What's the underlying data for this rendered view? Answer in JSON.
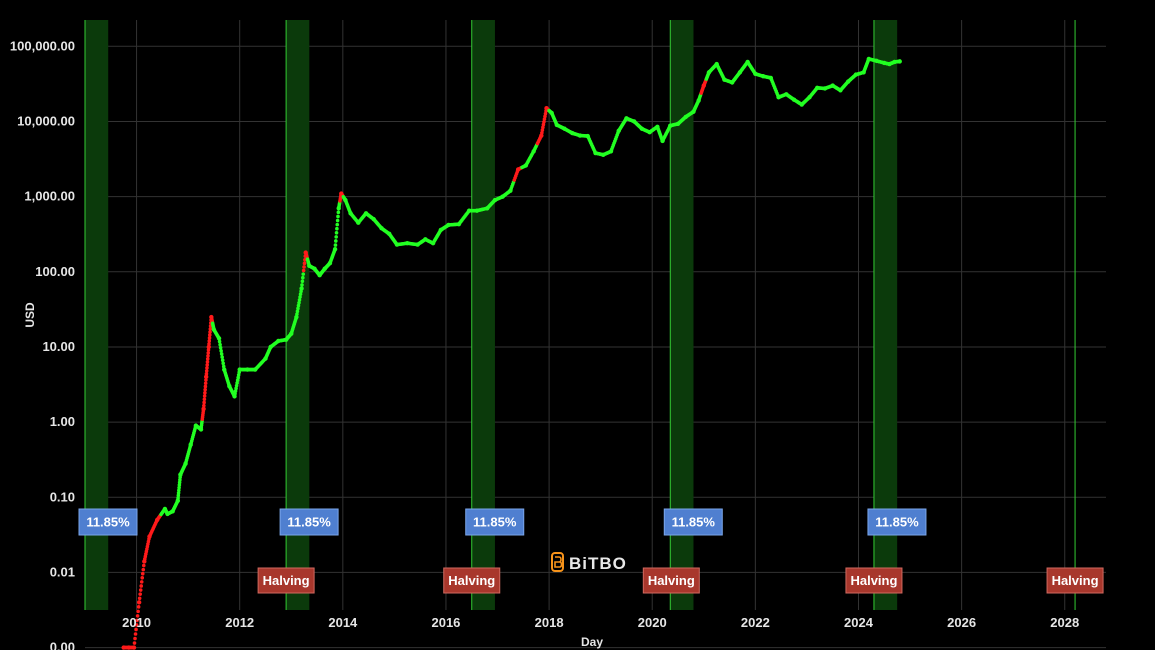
{
  "chart_data": {
    "type": "scatter",
    "title": "",
    "xlabel": "Day",
    "ylabel": "USD",
    "y_scale": "log",
    "x_range": [
      2009.0,
      2028.8
    ],
    "y_range_log10": [
      -2.5,
      5.35
    ],
    "x_tick_labels": [
      "2010",
      "2012",
      "2014",
      "2016",
      "2018",
      "2020",
      "2022",
      "2024",
      "2026",
      "2028"
    ],
    "x_tick_values": [
      2010,
      2012,
      2014,
      2016,
      2018,
      2020,
      2022,
      2024,
      2026,
      2028
    ],
    "y_tick_labels": [
      "100,000.00",
      "10,000.00",
      "1,000.00",
      "100.00",
      "10.00",
      "1.00",
      "0.10",
      "0.01",
      "0.00"
    ],
    "y_tick_log10": [
      5,
      4,
      3,
      2,
      1,
      0,
      -1,
      -2,
      -3
    ],
    "grid": true,
    "colors": {
      "up": "#22ff22",
      "down": "#ff1a1a",
      "band": "#0b3a0b",
      "band_line": "#33cc33",
      "pct_box": "#4f7fd0",
      "halving_box": "#a8372c"
    },
    "bands": [
      {
        "start": 2009.0,
        "end": 2009.45,
        "label": "11.85%"
      },
      {
        "start": 2012.9,
        "end": 2013.35,
        "label": "11.85%"
      },
      {
        "start": 2016.5,
        "end": 2016.95,
        "label": "11.85%"
      },
      {
        "start": 2020.35,
        "end": 2020.8,
        "label": "11.85%"
      },
      {
        "start": 2024.3,
        "end": 2024.75,
        "label": "11.85%"
      }
    ],
    "halvings": [
      {
        "x": 2012.9,
        "label": "Halving"
      },
      {
        "x": 2016.5,
        "label": "Halving"
      },
      {
        "x": 2020.37,
        "label": "Halving"
      },
      {
        "x": 2024.3,
        "label": "Halving"
      },
      {
        "x": 2028.2,
        "label": "Halving"
      }
    ],
    "price_series": [
      [
        2009.75,
        0.001,
        "down"
      ],
      [
        2009.85,
        0.001,
        "down"
      ],
      [
        2009.95,
        0.001,
        "down"
      ],
      [
        2010.05,
        0.004,
        "down"
      ],
      [
        2010.15,
        0.014,
        "down"
      ],
      [
        2010.25,
        0.03,
        "down"
      ],
      [
        2010.4,
        0.05,
        "down"
      ],
      [
        2010.55,
        0.07,
        "up"
      ],
      [
        2010.6,
        0.06,
        "up"
      ],
      [
        2010.7,
        0.065,
        "up"
      ],
      [
        2010.8,
        0.09,
        "up"
      ],
      [
        2010.85,
        0.2,
        "up"
      ],
      [
        2010.95,
        0.28,
        "up"
      ],
      [
        2011.05,
        0.5,
        "up"
      ],
      [
        2011.15,
        0.9,
        "up"
      ],
      [
        2011.25,
        0.8,
        "up"
      ],
      [
        2011.3,
        1.5,
        "down"
      ],
      [
        2011.35,
        4.0,
        "down"
      ],
      [
        2011.4,
        10,
        "down"
      ],
      [
        2011.45,
        25,
        "down"
      ],
      [
        2011.5,
        17,
        "up"
      ],
      [
        2011.6,
        13,
        "up"
      ],
      [
        2011.7,
        5,
        "up"
      ],
      [
        2011.8,
        3,
        "up"
      ],
      [
        2011.9,
        2.2,
        "up"
      ],
      [
        2012.0,
        5,
        "up"
      ],
      [
        2012.15,
        5,
        "up"
      ],
      [
        2012.3,
        5,
        "up"
      ],
      [
        2012.5,
        7,
        "up"
      ],
      [
        2012.6,
        10,
        "up"
      ],
      [
        2012.75,
        12,
        "up"
      ],
      [
        2012.9,
        12.5,
        "up"
      ],
      [
        2013.0,
        15,
        "up"
      ],
      [
        2013.1,
        25,
        "up"
      ],
      [
        2013.2,
        60,
        "up"
      ],
      [
        2013.28,
        180,
        "down"
      ],
      [
        2013.35,
        120,
        "up"
      ],
      [
        2013.45,
        110,
        "up"
      ],
      [
        2013.55,
        90,
        "up"
      ],
      [
        2013.65,
        110,
        "up"
      ],
      [
        2013.75,
        130,
        "up"
      ],
      [
        2013.85,
        200,
        "up"
      ],
      [
        2013.92,
        700,
        "up"
      ],
      [
        2013.97,
        1100,
        "down"
      ],
      [
        2014.05,
        900,
        "up"
      ],
      [
        2014.15,
        600,
        "up"
      ],
      [
        2014.3,
        450,
        "up"
      ],
      [
        2014.45,
        600,
        "up"
      ],
      [
        2014.6,
        500,
        "up"
      ],
      [
        2014.75,
        380,
        "up"
      ],
      [
        2014.9,
        320,
        "up"
      ],
      [
        2015.05,
        230,
        "up"
      ],
      [
        2015.25,
        240,
        "up"
      ],
      [
        2015.45,
        230,
        "up"
      ],
      [
        2015.6,
        270,
        "up"
      ],
      [
        2015.75,
        240,
        "up"
      ],
      [
        2015.9,
        360,
        "up"
      ],
      [
        2016.05,
        420,
        "up"
      ],
      [
        2016.25,
        430,
        "up"
      ],
      [
        2016.45,
        650,
        "up"
      ],
      [
        2016.6,
        650,
        "up"
      ],
      [
        2016.8,
        700,
        "up"
      ],
      [
        2016.95,
        900,
        "up"
      ],
      [
        2017.1,
        1000,
        "up"
      ],
      [
        2017.25,
        1200,
        "up"
      ],
      [
        2017.4,
        2300,
        "down"
      ],
      [
        2017.55,
        2600,
        "up"
      ],
      [
        2017.7,
        4000,
        "up"
      ],
      [
        2017.85,
        6500,
        "down"
      ],
      [
        2017.95,
        15000,
        "down"
      ],
      [
        2018.05,
        13000,
        "up"
      ],
      [
        2018.15,
        9000,
        "up"
      ],
      [
        2018.3,
        8000,
        "up"
      ],
      [
        2018.45,
        7000,
        "up"
      ],
      [
        2018.6,
        6500,
        "up"
      ],
      [
        2018.75,
        6400,
        "up"
      ],
      [
        2018.9,
        3800,
        "up"
      ],
      [
        2019.05,
        3600,
        "up"
      ],
      [
        2019.2,
        4000,
        "up"
      ],
      [
        2019.35,
        7500,
        "up"
      ],
      [
        2019.5,
        11000,
        "up"
      ],
      [
        2019.65,
        10000,
        "up"
      ],
      [
        2019.8,
        8000,
        "up"
      ],
      [
        2019.95,
        7200,
        "up"
      ],
      [
        2020.1,
        8500,
        "up"
      ],
      [
        2020.2,
        5500,
        "up"
      ],
      [
        2020.35,
        8800,
        "up"
      ],
      [
        2020.5,
        9300,
        "up"
      ],
      [
        2020.65,
        11500,
        "up"
      ],
      [
        2020.8,
        13500,
        "up"
      ],
      [
        2020.9,
        19000,
        "up"
      ],
      [
        2021.0,
        30000,
        "down"
      ],
      [
        2021.1,
        45000,
        "up"
      ],
      [
        2021.25,
        58000,
        "up"
      ],
      [
        2021.4,
        36000,
        "up"
      ],
      [
        2021.55,
        33000,
        "up"
      ],
      [
        2021.7,
        45000,
        "up"
      ],
      [
        2021.85,
        62000,
        "up"
      ],
      [
        2022.0,
        43000,
        "up"
      ],
      [
        2022.15,
        40000,
        "up"
      ],
      [
        2022.3,
        38000,
        "up"
      ],
      [
        2022.45,
        21000,
        "up"
      ],
      [
        2022.6,
        23000,
        "up"
      ],
      [
        2022.75,
        19500,
        "up"
      ],
      [
        2022.9,
        16800,
        "up"
      ],
      [
        2023.05,
        21000,
        "up"
      ],
      [
        2023.2,
        28000,
        "up"
      ],
      [
        2023.35,
        27500,
        "up"
      ],
      [
        2023.5,
        30000,
        "up"
      ],
      [
        2023.65,
        26000,
        "up"
      ],
      [
        2023.8,
        34000,
        "up"
      ],
      [
        2023.95,
        42000,
        "up"
      ],
      [
        2024.1,
        45000,
        "up"
      ],
      [
        2024.2,
        68000,
        "up"
      ],
      [
        2024.35,
        64000,
        "up"
      ],
      [
        2024.5,
        60000,
        "up"
      ],
      [
        2024.6,
        58000,
        "up"
      ],
      [
        2024.7,
        62000,
        "up"
      ],
      [
        2024.8,
        63000,
        "up"
      ]
    ]
  },
  "logo": {
    "text": "BiTBO",
    "icon": "bitcoin-b-icon",
    "color": "#f7931a"
  }
}
